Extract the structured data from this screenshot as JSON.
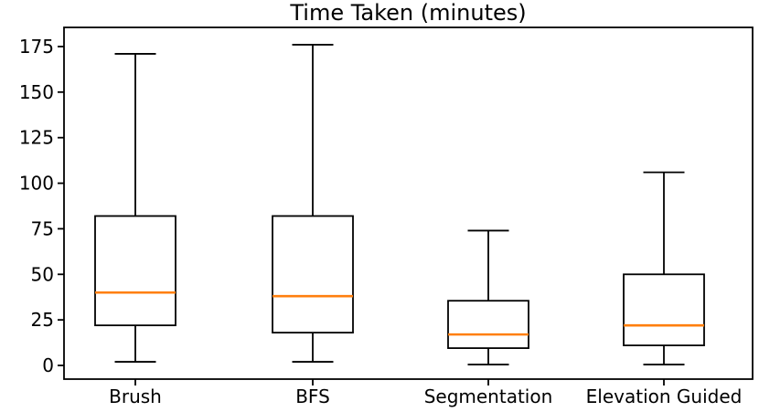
{
  "colors": {
    "line": "#000000",
    "median": "#ff7f0e",
    "box_fill": "#ffffff",
    "background": "#ffffff",
    "text": "#000000"
  },
  "chart_data": {
    "type": "boxplot",
    "title": "Time Taken (minutes)",
    "xlabel": "",
    "ylabel": "",
    "categories": [
      "Brush",
      "BFS",
      "Segmentation",
      "Elevation Guided"
    ],
    "series": [
      {
        "name": "Brush",
        "whisker_low": 2,
        "q1": 22,
        "median": 40,
        "q3": 82,
        "whisker_high": 171
      },
      {
        "name": "BFS",
        "whisker_low": 2,
        "q1": 18,
        "median": 38,
        "q3": 82,
        "whisker_high": 176
      },
      {
        "name": "Segmentation",
        "whisker_low": 0.5,
        "q1": 9.5,
        "median": 17,
        "q3": 35.5,
        "whisker_high": 74
      },
      {
        "name": "Elevation Guided",
        "whisker_low": 0.5,
        "q1": 11,
        "median": 22,
        "q3": 50,
        "whisker_high": 106
      }
    ],
    "yticks": [
      0,
      25,
      50,
      75,
      100,
      125,
      150,
      175
    ],
    "ylim": [
      -7.5,
      185.5
    ],
    "grid": false,
    "legend_position": "none"
  }
}
